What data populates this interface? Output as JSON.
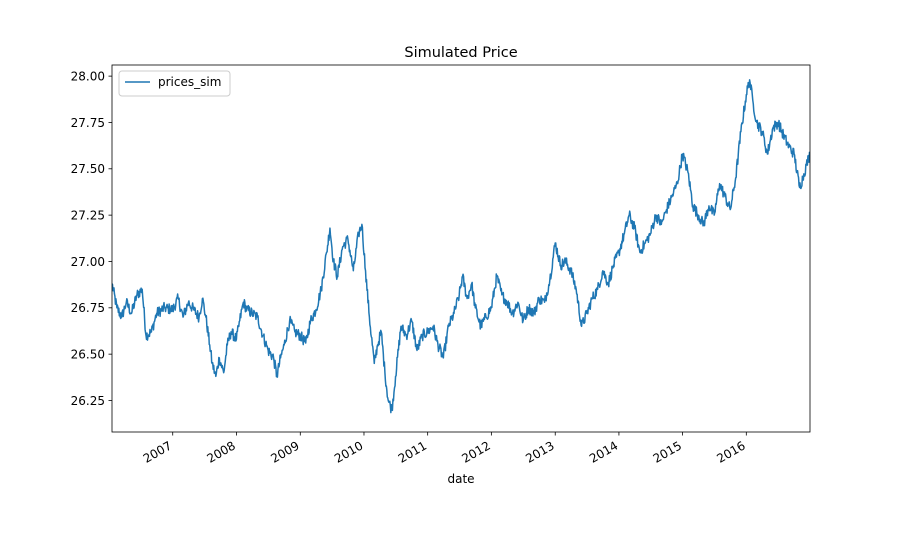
{
  "chart_data": {
    "type": "line",
    "title": "Simulated Price",
    "xlabel": "date",
    "ylabel": "",
    "xlim": [
      "2006-01-18",
      "2016-12-31"
    ],
    "ylim": [
      26.08,
      28.06
    ],
    "x_ticks": [
      "2007",
      "2008",
      "2009",
      "2010",
      "2011",
      "2012",
      "2013",
      "2014",
      "2015",
      "2016"
    ],
    "y_ticks": [
      "26.25",
      "26.50",
      "26.75",
      "27.00",
      "27.25",
      "27.50",
      "27.75",
      "28.00"
    ],
    "grid": false,
    "legend": {
      "position": "top-left",
      "entries": [
        "prices_sim"
      ]
    },
    "series": [
      {
        "name": "prices_sim",
        "color": "#1f77b4",
        "points": [
          [
            "2006-01-18",
            26.88
          ],
          [
            "2006-02-15",
            26.75
          ],
          [
            "2006-03-15",
            26.7
          ],
          [
            "2006-04-10",
            26.78
          ],
          [
            "2006-05-10",
            26.72
          ],
          [
            "2006-06-10",
            26.82
          ],
          [
            "2006-07-10",
            26.85
          ],
          [
            "2006-08-01",
            26.6
          ],
          [
            "2006-09-01",
            26.62
          ],
          [
            "2006-10-01",
            26.72
          ],
          [
            "2006-11-15",
            26.75
          ],
          [
            "2007-01-01",
            26.74
          ],
          [
            "2007-02-01",
            26.8
          ],
          [
            "2007-03-01",
            26.7
          ],
          [
            "2007-04-01",
            26.78
          ],
          [
            "2007-05-01",
            26.74
          ],
          [
            "2007-06-01",
            26.7
          ],
          [
            "2007-06-20",
            26.8
          ],
          [
            "2007-07-10",
            26.7
          ],
          [
            "2007-08-01",
            26.55
          ],
          [
            "2007-08-15",
            26.45
          ],
          [
            "2007-09-05",
            26.38
          ],
          [
            "2007-09-25",
            26.48
          ],
          [
            "2007-10-20",
            26.4
          ],
          [
            "2007-11-10",
            26.55
          ],
          [
            "2007-12-01",
            26.62
          ],
          [
            "2008-01-01",
            26.58
          ],
          [
            "2008-01-20",
            26.68
          ],
          [
            "2008-02-10",
            26.78
          ],
          [
            "2008-03-01",
            26.74
          ],
          [
            "2008-04-01",
            26.72
          ],
          [
            "2008-05-01",
            26.7
          ],
          [
            "2008-06-01",
            26.6
          ],
          [
            "2008-07-01",
            26.52
          ],
          [
            "2008-08-01",
            26.48
          ],
          [
            "2008-08-20",
            26.38
          ],
          [
            "2008-09-10",
            26.48
          ],
          [
            "2008-10-01",
            26.55
          ],
          [
            "2008-11-01",
            26.68
          ],
          [
            "2008-12-01",
            26.62
          ],
          [
            "2009-01-01",
            26.6
          ],
          [
            "2009-02-01",
            26.56
          ],
          [
            "2009-03-01",
            26.68
          ],
          [
            "2009-04-01",
            26.74
          ],
          [
            "2009-05-01",
            26.85
          ],
          [
            "2009-06-01",
            27.05
          ],
          [
            "2009-06-20",
            27.18
          ],
          [
            "2009-07-10",
            27.0
          ],
          [
            "2009-08-01",
            26.92
          ],
          [
            "2009-09-01",
            27.08
          ],
          [
            "2009-10-01",
            27.12
          ],
          [
            "2009-11-01",
            26.95
          ],
          [
            "2009-12-01",
            27.15
          ],
          [
            "2009-12-20",
            27.2
          ],
          [
            "2010-01-10",
            26.95
          ],
          [
            "2010-02-01",
            26.7
          ],
          [
            "2010-03-01",
            26.45
          ],
          [
            "2010-03-20",
            26.55
          ],
          [
            "2010-04-10",
            26.62
          ],
          [
            "2010-05-01",
            26.4
          ],
          [
            "2010-05-20",
            26.25
          ],
          [
            "2010-06-10",
            26.2
          ],
          [
            "2010-07-01",
            26.38
          ],
          [
            "2010-08-01",
            26.65
          ],
          [
            "2010-09-01",
            26.6
          ],
          [
            "2010-10-01",
            26.68
          ],
          [
            "2010-11-01",
            26.52
          ],
          [
            "2010-12-01",
            26.6
          ],
          [
            "2011-01-01",
            26.62
          ],
          [
            "2011-02-01",
            26.65
          ],
          [
            "2011-03-01",
            26.55
          ],
          [
            "2011-04-01",
            26.48
          ],
          [
            "2011-05-01",
            26.65
          ],
          [
            "2011-06-01",
            26.72
          ],
          [
            "2011-07-01",
            26.82
          ],
          [
            "2011-07-20",
            26.92
          ],
          [
            "2011-08-15",
            26.8
          ],
          [
            "2011-09-10",
            26.88
          ],
          [
            "2011-10-01",
            26.75
          ],
          [
            "2011-11-01",
            26.65
          ],
          [
            "2011-12-01",
            26.7
          ],
          [
            "2012-01-01",
            26.75
          ],
          [
            "2012-02-01",
            26.92
          ],
          [
            "2012-03-01",
            26.82
          ],
          [
            "2012-04-01",
            26.78
          ],
          [
            "2012-05-01",
            26.72
          ],
          [
            "2012-06-01",
            26.78
          ],
          [
            "2012-07-01",
            26.68
          ],
          [
            "2012-08-01",
            26.75
          ],
          [
            "2012-09-01",
            26.72
          ],
          [
            "2012-10-01",
            26.8
          ],
          [
            "2012-11-01",
            26.78
          ],
          [
            "2012-12-01",
            26.9
          ],
          [
            "2013-01-01",
            27.1
          ],
          [
            "2013-02-01",
            26.98
          ],
          [
            "2013-03-01",
            27.0
          ],
          [
            "2013-04-01",
            26.95
          ],
          [
            "2013-05-01",
            26.85
          ],
          [
            "2013-06-01",
            26.65
          ],
          [
            "2013-07-01",
            26.72
          ],
          [
            "2013-08-01",
            26.8
          ],
          [
            "2013-09-01",
            26.85
          ],
          [
            "2013-10-01",
            26.95
          ],
          [
            "2013-11-01",
            26.88
          ],
          [
            "2013-12-01",
            26.98
          ],
          [
            "2014-01-01",
            27.05
          ],
          [
            "2014-02-01",
            27.15
          ],
          [
            "2014-03-01",
            27.25
          ],
          [
            "2014-04-01",
            27.18
          ],
          [
            "2014-05-01",
            27.05
          ],
          [
            "2014-06-01",
            27.1
          ],
          [
            "2014-07-01",
            27.15
          ],
          [
            "2014-08-01",
            27.25
          ],
          [
            "2014-09-01",
            27.2
          ],
          [
            "2014-10-01",
            27.28
          ],
          [
            "2014-11-01",
            27.35
          ],
          [
            "2014-12-01",
            27.42
          ],
          [
            "2015-01-01",
            27.58
          ],
          [
            "2015-02-01",
            27.48
          ],
          [
            "2015-03-01",
            27.3
          ],
          [
            "2015-04-01",
            27.25
          ],
          [
            "2015-05-01",
            27.2
          ],
          [
            "2015-06-01",
            27.3
          ],
          [
            "2015-07-01",
            27.25
          ],
          [
            "2015-08-01",
            27.42
          ],
          [
            "2015-09-01",
            27.35
          ],
          [
            "2015-10-01",
            27.28
          ],
          [
            "2015-11-01",
            27.45
          ],
          [
            "2015-12-01",
            27.7
          ],
          [
            "2016-01-01",
            27.9
          ],
          [
            "2016-01-20",
            27.98
          ],
          [
            "2016-02-10",
            27.85
          ],
          [
            "2016-03-01",
            27.75
          ],
          [
            "2016-04-01",
            27.7
          ],
          [
            "2016-05-01",
            27.58
          ],
          [
            "2016-06-01",
            27.72
          ],
          [
            "2016-07-01",
            27.75
          ],
          [
            "2016-08-01",
            27.68
          ],
          [
            "2016-09-01",
            27.62
          ],
          [
            "2016-10-01",
            27.58
          ],
          [
            "2016-11-01",
            27.4
          ],
          [
            "2016-11-20",
            27.45
          ],
          [
            "2016-12-10",
            27.52
          ],
          [
            "2016-12-31",
            27.58
          ]
        ]
      }
    ]
  }
}
